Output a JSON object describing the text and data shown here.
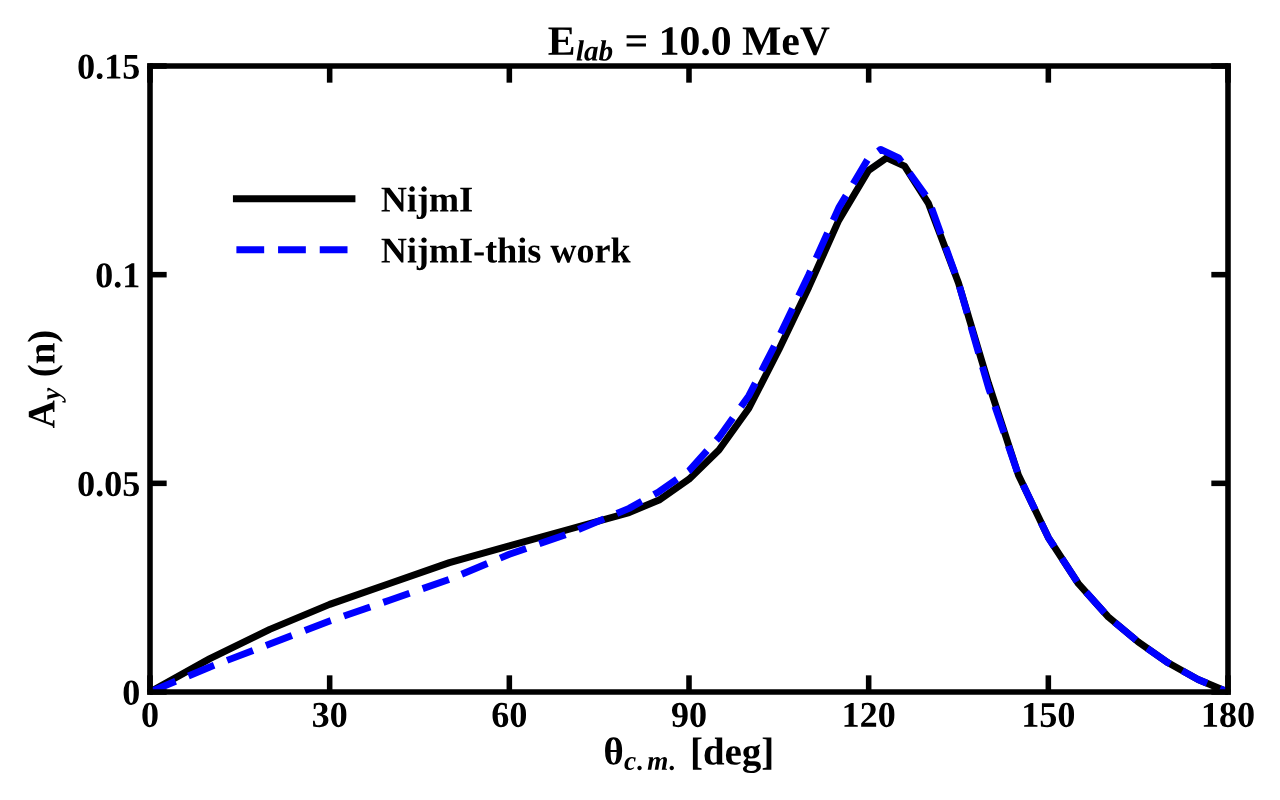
{
  "chart_data": {
    "type": "line",
    "title": "E$_{lab}$ = 10.0 MeV",
    "xlabel": "θ$_{c.m.}$ [deg]",
    "ylabel": "A$_{y}$ (n)",
    "xlim": [
      0,
      180
    ],
    "xticks": [
      0,
      30,
      60,
      90,
      120,
      150,
      180
    ],
    "ylim": [
      0,
      0.15
    ],
    "yticks": [
      0,
      0.05,
      0.1,
      0.15
    ],
    "grid": false,
    "legend": "top left",
    "marker": "none",
    "series": [
      {
        "name": "NijmI",
        "color": "#000000",
        "line_style": "solid",
        "x": [
          0,
          10,
          20,
          30,
          40,
          50,
          60,
          70,
          80,
          85,
          90,
          95,
          100,
          105,
          110,
          115,
          120,
          123,
          126,
          130,
          135,
          140,
          145,
          150,
          155,
          160,
          165,
          170,
          175,
          180
        ],
        "values": [
          0,
          0.008,
          0.015,
          0.021,
          0.026,
          0.031,
          0.035,
          0.039,
          0.043,
          0.046,
          0.051,
          0.058,
          0.068,
          0.082,
          0.097,
          0.113,
          0.125,
          0.128,
          0.126,
          0.117,
          0.098,
          0.074,
          0.052,
          0.037,
          0.026,
          0.018,
          0.012,
          0.007,
          0.003,
          0
        ]
      },
      {
        "name": "NijmI-this work",
        "color": "#0000ff",
        "line_style": "dashed",
        "x": [
          0,
          10,
          20,
          30,
          40,
          50,
          60,
          70,
          80,
          85,
          90,
          95,
          100,
          105,
          110,
          115,
          120,
          122,
          125,
          130,
          135,
          140,
          145,
          150,
          155,
          160,
          165,
          170,
          175,
          180
        ],
        "values": [
          0,
          0.006,
          0.0115,
          0.017,
          0.022,
          0.027,
          0.033,
          0.038,
          0.044,
          0.048,
          0.053,
          0.061,
          0.071,
          0.085,
          0.1,
          0.116,
          0.128,
          0.13,
          0.128,
          0.118,
          0.098,
          0.073,
          0.052,
          0.037,
          0.026,
          0.018,
          0.012,
          0.007,
          0.003,
          0
        ]
      }
    ]
  }
}
